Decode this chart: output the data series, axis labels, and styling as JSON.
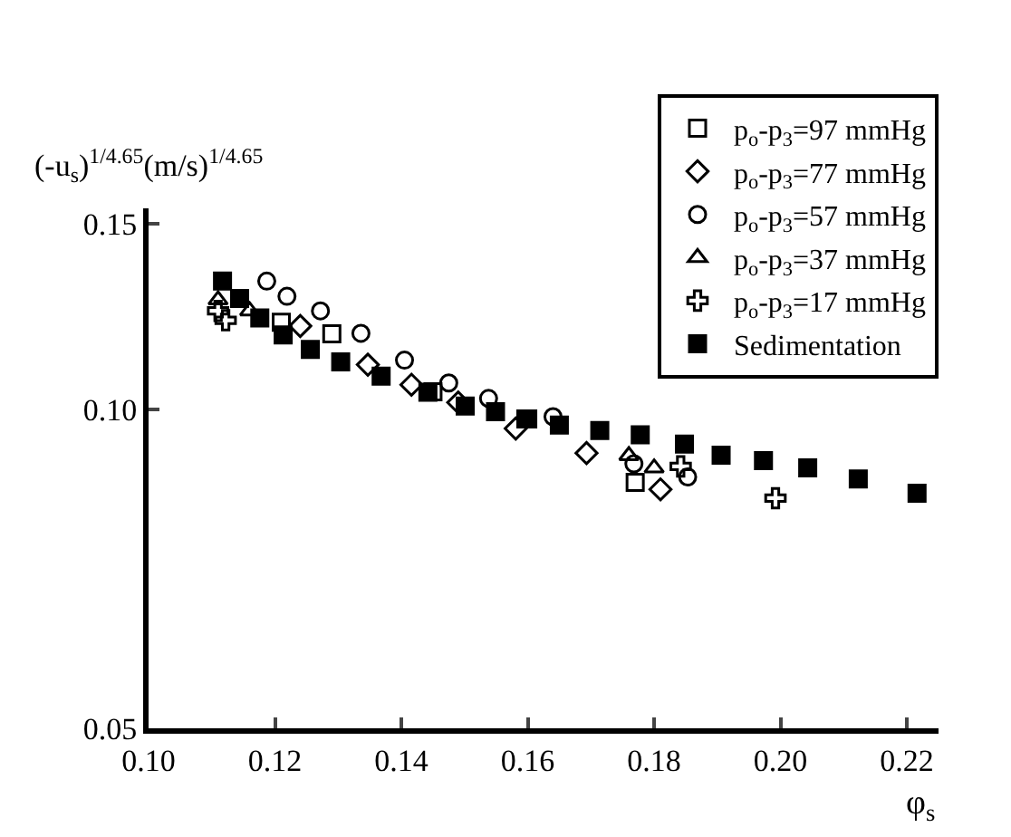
{
  "chart_data": {
    "type": "scatter",
    "xlabel": "φ$_{s}$",
    "ylabel": "(-u$_{s}$)$^{1/4.65}$(m/s)$^{1/4.65}$",
    "xlim": [
      0.1,
      0.225
    ],
    "xticks": [
      {
        "value": 0.1,
        "label": "0.10"
      },
      0.12,
      0.14,
      0.16,
      0.18,
      {
        "value": 0.2,
        "label": "0.20"
      },
      0.22
    ],
    "ylim": [
      0.05,
      0.155
    ],
    "yticks": [
      {
        "value": 0.05,
        "label": "0.05"
      },
      {
        "value": 0.1,
        "label": "0.10"
      },
      {
        "value": 0.15,
        "label": "0.15"
      }
    ],
    "log": "y",
    "legend": "top right",
    "series": [
      {
        "name": "p$_{o}$-p$_{3}$=97 mmHg",
        "color": "#000000",
        "marker": "square",
        "x": [
          0.121,
          0.129,
          0.145,
          0.16,
          0.177
        ],
        "values": [
          0.121,
          0.118,
          0.104,
          0.098,
          0.0854
        ]
      },
      {
        "name": "p$_{o}$-p$_{3}$=77 mmHg",
        "color": "#000000",
        "marker": "diamond",
        "x": [
          0.124,
          0.1347,
          0.1416,
          0.149,
          0.1581,
          0.1693,
          0.181
        ],
        "values": [
          0.12,
          0.1103,
          0.1056,
          0.1016,
          0.096,
          0.091,
          0.0841
        ]
      },
      {
        "name": "p$_{o}$-p$_{3}$=57 mmHg",
        "color": "#000000",
        "marker": "circle",
        "x": [
          0.1187,
          0.1219,
          0.1272,
          0.1336,
          0.1405,
          0.1475,
          0.1538,
          0.164,
          0.1768,
          0.1853
        ],
        "values": [
          0.1323,
          0.128,
          0.124,
          0.1181,
          0.1114,
          0.106,
          0.1025,
          0.0985,
          0.0889,
          0.0864
        ]
      },
      {
        "name": "p$_{o}$-p$_{3}$=37 mmHg",
        "color": "#000000",
        "marker": "triangle",
        "x": [
          0.111,
          0.116,
          0.176,
          0.18
        ],
        "values": [
          0.127,
          0.124,
          0.0905,
          0.0881
        ]
      },
      {
        "name": "p$_{o}$-p$_{3}$=17 mmHg",
        "color": "#000000",
        "marker": "cross",
        "x": [
          0.111,
          0.1122,
          0.1842,
          0.1992
        ],
        "values": [
          0.124,
          0.1215,
          0.0884,
          0.0825
        ]
      },
      {
        "name": "Sedimentation",
        "color": "#000000",
        "marker": "square_filled",
        "x": [
          0.1117,
          0.1144,
          0.1176,
          0.1213,
          0.1256,
          0.1304,
          0.1368,
          0.1442,
          0.1501,
          0.1549,
          0.1597,
          0.165,
          0.1714,
          0.1778,
          0.1848,
          0.1906,
          0.1973,
          0.2043,
          0.2123,
          0.2216
        ],
        "values": [
          0.1323,
          0.1274,
          0.1221,
          0.1177,
          0.114,
          0.111,
          0.1076,
          0.1039,
          0.1008,
          0.0996,
          0.098,
          0.0967,
          0.0956,
          0.0947,
          0.0928,
          0.0906,
          0.0895,
          0.0881,
          0.086,
          0.0834
        ]
      }
    ]
  }
}
